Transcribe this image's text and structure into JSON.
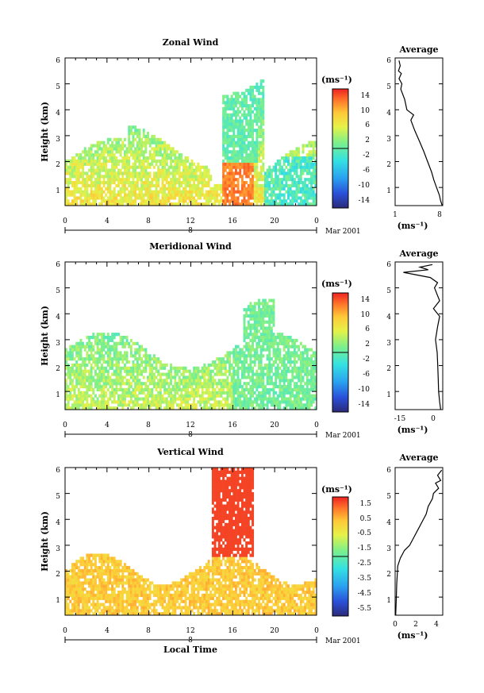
{
  "figure": {
    "xlabel": "Local Time",
    "date_label": "Mar 2001",
    "day_marker": "8"
  },
  "chart_data": [
    {
      "type": "heatmap",
      "title": "Zonal Wind",
      "ylabel": "Height (km)",
      "xlabel": "Local Time",
      "x_ticks": [
        "0",
        "4",
        "8",
        "12",
        "16",
        "20",
        "0"
      ],
      "y_ticks": [
        "1",
        "2",
        "3",
        "4",
        "5",
        "6"
      ],
      "xlim": [
        0,
        24
      ],
      "ylim": [
        0.3,
        6
      ],
      "colorbar": {
        "unit": "(ms⁻¹)",
        "ticks": [
          "14",
          "10",
          "6",
          "2",
          "-2",
          "-6",
          "-10",
          "-14"
        ],
        "range": [
          -16,
          16
        ]
      },
      "profile": {
        "title": "Average",
        "xlabel": "(ms⁻¹)",
        "x_ticks": [
          "1",
          "8"
        ],
        "y_ticks": [
          "1",
          "2",
          "3",
          "4",
          "5",
          "6"
        ],
        "xlim": [
          0.5,
          9
        ],
        "heights": [
          0.3,
          0.5,
          0.7,
          1.0,
          1.3,
          1.6,
          2.0,
          2.4,
          2.8,
          3.2,
          3.6,
          3.8,
          4.0,
          4.4,
          4.8,
          5.0,
          5.2,
          5.4,
          5.5,
          5.7,
          5.9
        ],
        "values": [
          8.9,
          8.6,
          8.4,
          7.9,
          7.4,
          7.0,
          6.3,
          5.6,
          4.8,
          4.0,
          3.3,
          3.8,
          2.6,
          2.2,
          1.5,
          1.7,
          1.2,
          1.6,
          1.1,
          1.4,
          1.2
        ]
      }
    },
    {
      "type": "heatmap",
      "title": "Meridional Wind",
      "ylabel": "Height (km)",
      "xlabel": "Local Time",
      "x_ticks": [
        "0",
        "4",
        "8",
        "12",
        "16",
        "20",
        "0"
      ],
      "y_ticks": [
        "1",
        "2",
        "3",
        "4",
        "5",
        "6"
      ],
      "xlim": [
        0,
        24
      ],
      "ylim": [
        0.3,
        6
      ],
      "colorbar": {
        "unit": "(ms⁻¹)",
        "ticks": [
          "14",
          "10",
          "6",
          "2",
          "-2",
          "-6",
          "-10",
          "-14"
        ],
        "range": [
          -16,
          16
        ]
      },
      "profile": {
        "title": "Average",
        "xlabel": "(ms⁻¹)",
        "x_ticks": [
          "-15",
          "0"
        ],
        "y_ticks": [
          "1",
          "2",
          "3",
          "4",
          "5",
          "6"
        ],
        "xlim": [
          -20,
          3
        ],
        "heights": [
          0.3,
          0.6,
          1.0,
          1.5,
          2.0,
          2.5,
          3.0,
          3.5,
          3.9,
          4.2,
          4.5,
          4.8,
          5.0,
          5.2,
          5.4,
          5.6,
          5.7,
          5.8,
          5.9
        ],
        "values": [
          2.0,
          1.5,
          1.0,
          0.8,
          0.6,
          0.3,
          -0.5,
          0.5,
          1.5,
          -1.5,
          1.5,
          0.0,
          -1.0,
          0.5,
          -3.0,
          -16.0,
          -4.0,
          -8.0,
          -2.0
        ]
      }
    },
    {
      "type": "heatmap",
      "title": "Vertical Wind",
      "ylabel": "Height (km)",
      "xlabel": "Local Time",
      "x_ticks": [
        "0",
        "4",
        "8",
        "12",
        "16",
        "20",
        "0"
      ],
      "y_ticks": [
        "1",
        "2",
        "3",
        "4",
        "5",
        "6"
      ],
      "xlim": [
        0,
        24
      ],
      "ylim": [
        0.3,
        6
      ],
      "colorbar": {
        "unit": "(ms⁻¹)",
        "ticks": [
          "1.5",
          "0.5",
          "-0.5",
          "-1.5",
          "-2.5",
          "-3.5",
          "-4.5",
          "-5.5"
        ],
        "range": [
          -6,
          2
        ]
      },
      "profile": {
        "title": "Average",
        "xlabel": "(ms⁻¹)",
        "x_ticks": [
          "0",
          "2",
          "4"
        ],
        "y_ticks": [
          "1",
          "2",
          "3",
          "4",
          "5",
          "6"
        ],
        "xlim": [
          0,
          4.6
        ],
        "heights": [
          0.3,
          0.8,
          1.5,
          2.2,
          2.5,
          2.8,
          3.0,
          3.3,
          3.6,
          3.9,
          4.2,
          4.5,
          4.8,
          5.0,
          5.2,
          5.4,
          5.5,
          5.7,
          5.9
        ],
        "values": [
          0.05,
          0.1,
          0.15,
          0.25,
          0.5,
          0.9,
          1.4,
          1.8,
          2.2,
          2.6,
          3.0,
          3.2,
          3.6,
          3.7,
          4.2,
          3.9,
          4.4,
          4.1,
          4.5
        ]
      }
    }
  ]
}
